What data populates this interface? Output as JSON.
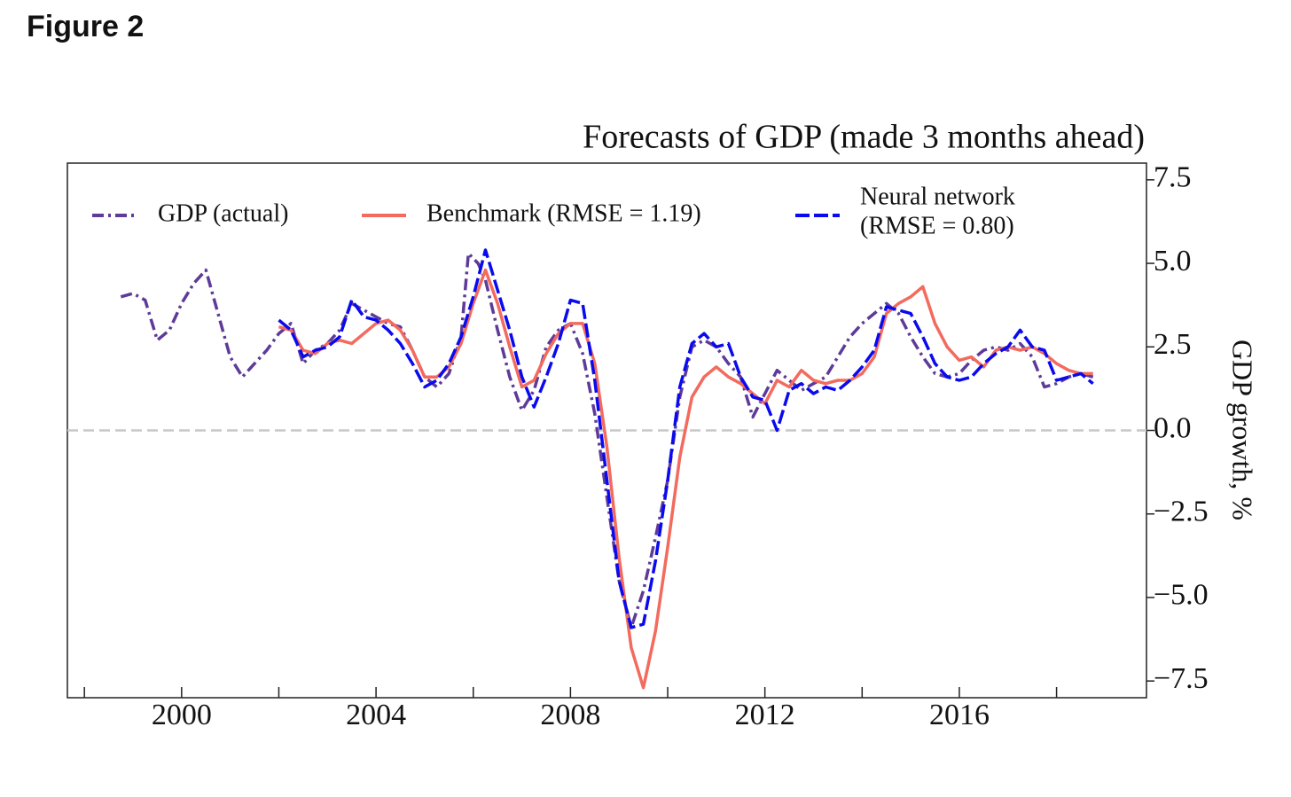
{
  "heading": "Figure 2",
  "chart_data": {
    "type": "line",
    "title": "Forecasts of GDP (made 3 months ahead)",
    "ylabel": "GDP growth, %",
    "xlim": [
      1997.65,
      2019.85
    ],
    "ylim": [
      -8,
      8
    ],
    "xticks": [
      2000,
      2004,
      2008,
      2012,
      2016
    ],
    "xminor_ticks": [
      1998,
      2002,
      2006,
      2010,
      2014,
      2018
    ],
    "yticks": [
      {
        "value": -7.5,
        "label": "−7.5"
      },
      {
        "value": -5,
        "label": "−5.0"
      },
      {
        "value": -2.5,
        "label": "−2.5"
      },
      {
        "value": 0,
        "label": "0.0"
      },
      2.5,
      {
        "value": 5,
        "label": "5.0"
      },
      7.5
    ],
    "yaxis_side": "right",
    "reference_line": {
      "y": 0,
      "color": "#c8c8c8"
    },
    "legend": "top",
    "series": [
      {
        "name": "GDP (actual)",
        "color": "#5e3a99",
        "dash": "dashdot",
        "x": [
          1998.75,
          1999,
          1999.25,
          1999.5,
          1999.75,
          2000,
          2000.25,
          2000.5,
          2000.75,
          2001,
          2001.25,
          2001.5,
          2001.75,
          2002,
          2002.25,
          2002.5,
          2002.75,
          2003,
          2003.25,
          2003.5,
          2003.75,
          2004,
          2004.25,
          2004.5,
          2004.75,
          2005,
          2005.25,
          2005.5,
          2005.75,
          2005.9,
          2006.1,
          2006.25,
          2006.5,
          2006.75,
          2007,
          2007.25,
          2007.5,
          2007.75,
          2008,
          2008.25,
          2008.5,
          2008.75,
          2009,
          2009.25,
          2009.5,
          2009.75,
          2010,
          2010.25,
          2010.5,
          2010.75,
          2011,
          2011.25,
          2011.5,
          2011.75,
          2012,
          2012.25,
          2012.5,
          2012.75,
          2013,
          2013.25,
          2013.5,
          2013.75,
          2014,
          2014.25,
          2014.5,
          2014.75,
          2015,
          2015.25,
          2015.5,
          2015.75,
          2016,
          2016.25,
          2016.5,
          2016.75,
          2017,
          2017.25,
          2017.5,
          2017.75,
          2018,
          2018.25,
          2018.5,
          2018.75
        ],
        "values": [
          4.0,
          4.1,
          3.9,
          2.7,
          3.0,
          3.8,
          4.4,
          4.8,
          3.5,
          2.2,
          1.6,
          2.0,
          2.4,
          2.9,
          3.2,
          2.0,
          2.4,
          2.6,
          3.0,
          3.8,
          3.6,
          3.4,
          3.2,
          3.1,
          2.4,
          1.6,
          1.3,
          1.7,
          2.8,
          5.3,
          5.0,
          4.5,
          3.0,
          1.6,
          0.6,
          1.2,
          2.5,
          3.0,
          3.2,
          2.3,
          0.5,
          -2.0,
          -4.5,
          -5.9,
          -4.8,
          -3.2,
          -1.5,
          1.0,
          2.5,
          2.7,
          2.5,
          2.0,
          1.6,
          0.4,
          1.1,
          1.8,
          1.5,
          1.2,
          1.4,
          1.6,
          2.2,
          2.8,
          3.2,
          3.5,
          3.8,
          3.5,
          2.8,
          2.2,
          1.7,
          1.6,
          1.7,
          2.1,
          2.4,
          2.5,
          2.4,
          2.6,
          2.2,
          1.3,
          1.4,
          1.6,
          1.7,
          1.6
        ]
      },
      {
        "name": "Benchmark (RMSE = 1.19)",
        "color": "#f26b5e",
        "dash": "solid",
        "x": [
          2002,
          2002.25,
          2002.5,
          2002.75,
          2003,
          2003.25,
          2003.5,
          2003.75,
          2004,
          2004.25,
          2004.5,
          2004.75,
          2005,
          2005.25,
          2005.5,
          2005.75,
          2006,
          2006.25,
          2006.5,
          2006.75,
          2007,
          2007.25,
          2007.5,
          2007.75,
          2008,
          2008.25,
          2008.5,
          2008.75,
          2009,
          2009.25,
          2009.5,
          2009.75,
          2010,
          2010.25,
          2010.5,
          2010.75,
          2011,
          2011.25,
          2011.5,
          2011.75,
          2012,
          2012.25,
          2012.5,
          2012.75,
          2013,
          2013.25,
          2013.5,
          2013.75,
          2014,
          2014.25,
          2014.5,
          2014.75,
          2015,
          2015.25,
          2015.5,
          2015.75,
          2016,
          2016.25,
          2016.5,
          2016.75,
          2017,
          2017.25,
          2017.5,
          2017.75,
          2018,
          2018.25,
          2018.5,
          2018.75
        ],
        "values": [
          3.1,
          3.0,
          2.4,
          2.3,
          2.6,
          2.7,
          2.6,
          2.9,
          3.2,
          3.3,
          3.0,
          2.4,
          1.6,
          1.6,
          1.9,
          2.6,
          3.8,
          4.8,
          3.8,
          2.5,
          1.3,
          1.5,
          2.3,
          2.9,
          3.2,
          3.2,
          2.0,
          -0.5,
          -3.8,
          -6.5,
          -7.7,
          -6.0,
          -3.5,
          -0.8,
          1.0,
          1.6,
          1.9,
          1.6,
          1.4,
          1.1,
          0.8,
          1.5,
          1.3,
          1.8,
          1.5,
          1.4,
          1.5,
          1.5,
          1.7,
          2.2,
          3.5,
          3.8,
          4.0,
          4.3,
          3.2,
          2.5,
          2.1,
          2.2,
          1.9,
          2.4,
          2.5,
          2.4,
          2.5,
          2.3,
          2.0,
          1.8,
          1.7,
          1.7
        ]
      },
      {
        "name": [
          "Neural network",
          "(RMSE = 0.80)"
        ],
        "color": "#0a0aee",
        "dash": "dashed",
        "x": [
          2002,
          2002.25,
          2002.5,
          2002.75,
          2003,
          2003.25,
          2003.5,
          2003.75,
          2004,
          2004.25,
          2004.5,
          2004.75,
          2005,
          2005.25,
          2005.5,
          2005.75,
          2006,
          2006.25,
          2006.5,
          2006.75,
          2007,
          2007.25,
          2007.5,
          2007.75,
          2008,
          2008.25,
          2008.5,
          2008.75,
          2009,
          2009.25,
          2009.5,
          2009.75,
          2010,
          2010.25,
          2010.5,
          2010.75,
          2011,
          2011.25,
          2011.5,
          2011.75,
          2012,
          2012.25,
          2012.5,
          2012.75,
          2013,
          2013.25,
          2013.5,
          2013.75,
          2014,
          2014.25,
          2014.5,
          2014.75,
          2015,
          2015.25,
          2015.5,
          2015.75,
          2016,
          2016.25,
          2016.5,
          2016.75,
          2017,
          2017.25,
          2017.5,
          2017.75,
          2018,
          2018.25,
          2018.5,
          2018.75
        ],
        "values": [
          3.3,
          3.0,
          2.2,
          2.4,
          2.5,
          2.8,
          3.9,
          3.4,
          3.3,
          3.0,
          2.6,
          2.0,
          1.3,
          1.5,
          2.0,
          2.8,
          4.0,
          5.4,
          4.2,
          3.0,
          1.6,
          0.7,
          1.6,
          2.6,
          3.9,
          3.8,
          1.5,
          -1.5,
          -4.5,
          -5.9,
          -5.8,
          -3.9,
          -1.5,
          1.3,
          2.6,
          2.9,
          2.5,
          2.6,
          1.6,
          1.0,
          0.9,
          0.0,
          1.2,
          1.4,
          1.1,
          1.3,
          1.2,
          1.5,
          1.9,
          2.4,
          3.7,
          3.6,
          3.5,
          2.8,
          2.0,
          1.6,
          1.5,
          1.6,
          2.0,
          2.3,
          2.5,
          3.0,
          2.5,
          2.4,
          1.5,
          1.6,
          1.7,
          1.4
        ]
      }
    ]
  }
}
